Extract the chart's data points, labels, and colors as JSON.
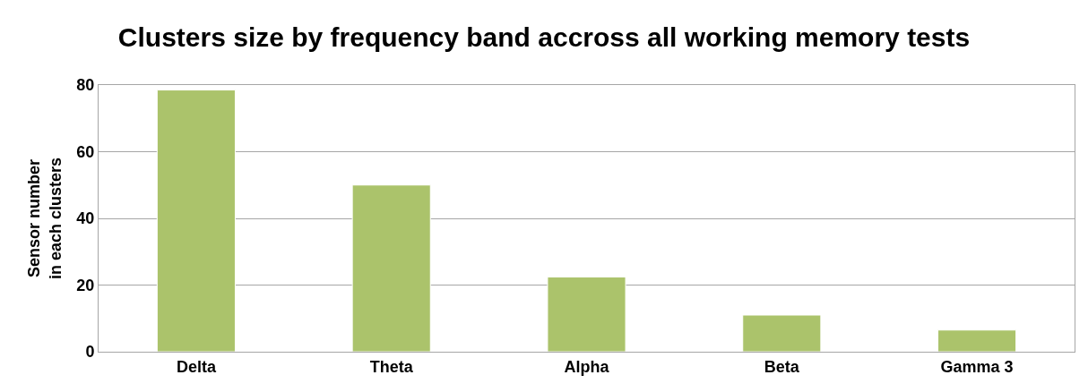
{
  "chart_data": {
    "type": "bar",
    "title": "Clusters size by frequency band accross all working memory tests",
    "ylabel": "Sensor number\nin each clusters",
    "categories": [
      "Delta",
      "Theta",
      "Alpha",
      "Beta",
      "Gamma 3"
    ],
    "values": [
      78.5,
      50,
      22.4,
      11,
      6.5
    ],
    "color": "#abc36b",
    "ylim": [
      0,
      80
    ],
    "yticks": [
      0,
      20,
      40,
      60,
      80
    ],
    "grid": "y",
    "legend": false
  }
}
